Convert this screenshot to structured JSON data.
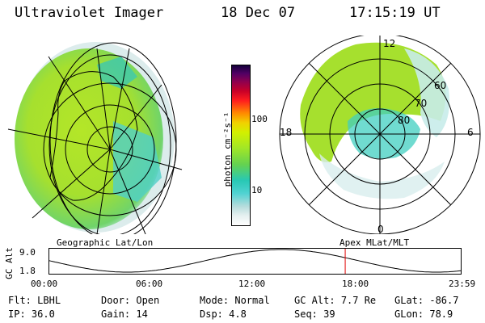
{
  "header": {
    "instrument": "Ultraviolet Imager",
    "date": "18 Dec 07",
    "time": "17:15:19 UT"
  },
  "colorbar": {
    "unit_label": "photon cm⁻²s⁻¹",
    "ticks": [
      "100",
      "10"
    ],
    "scale": "log",
    "colors": [
      "#ffffff",
      "#e6f0f0",
      "#b4dcdc",
      "#50d2d2",
      "#28c8b4",
      "#64d250",
      "#a0e628",
      "#d2f000",
      "#f0d200",
      "#ff8c00",
      "#ff1e1e",
      "#c80028",
      "#8c0050",
      "#500064",
      "#14003c"
    ]
  },
  "left_panel": {
    "label": "Geographic Lat/Lon"
  },
  "right_panel": {
    "label": "Apex MLat/MLT",
    "mlt_labels": {
      "top": "12",
      "left": "18",
      "right": "6",
      "bottom": "0"
    },
    "lat_labels": [
      "60",
      "70",
      "80"
    ]
  },
  "altitude_plot": {
    "ylabel": "GC Alt",
    "y_ticks": [
      "9.0",
      "1.8"
    ],
    "x_ticks": [
      "00:00",
      "06:00",
      "12:00",
      "18:00",
      "23:59"
    ],
    "current_marker_time": "17:15",
    "marker_color": "#e00000"
  },
  "info": {
    "row1": [
      {
        "key": "Flt:",
        "value": "LBHL"
      },
      {
        "key": "Door:",
        "value": "Open"
      },
      {
        "key": "Mode:",
        "value": "Normal"
      },
      {
        "key": "GC Alt:",
        "value": "7.7 Re"
      },
      {
        "key": "GLat:",
        "value": "-86.7"
      }
    ],
    "row2": [
      {
        "key": "IP:",
        "value": "36.0"
      },
      {
        "key": "Gain:",
        "value": "14"
      },
      {
        "key": "Dsp:",
        "value": "4.8"
      },
      {
        "key": "Seq:",
        "value": "39"
      },
      {
        "key": "GLon:",
        "value": "78.9"
      }
    ]
  }
}
